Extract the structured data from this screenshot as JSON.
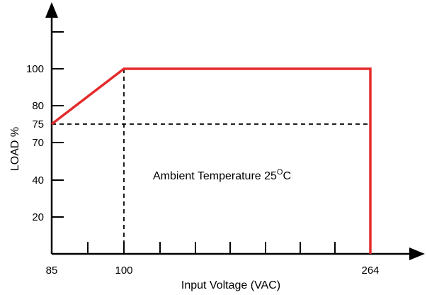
{
  "chart_data": {
    "type": "line",
    "xlabel": "Input Voltage (VAC)",
    "ylabel": "LOAD %",
    "x_tick_labels": [
      "85",
      "100",
      "264"
    ],
    "y_tick_labels": [
      "20",
      "40",
      "70",
      "75",
      "80",
      "100"
    ],
    "series": [
      {
        "color": "#e32b2b",
        "points": [
          {
            "x": 85,
            "y": 75
          },
          {
            "x": 100,
            "y": 100
          },
          {
            "x": 264,
            "y": 100
          },
          {
            "x": 264,
            "y": 0
          }
        ]
      }
    ],
    "reference_lines": [
      {
        "orientation": "horizontal",
        "y": 75,
        "from_x": 85,
        "to_x": 264,
        "style": "dashed"
      },
      {
        "orientation": "vertical",
        "x": 100,
        "from_y": 0,
        "to_y": 100,
        "style": "dashed"
      }
    ],
    "annotation": {
      "text": "Ambient Temperature 25",
      "superscript": "O",
      "suffix": "C"
    },
    "xlim": [
      85,
      264
    ],
    "ylim": [
      0,
      100
    ],
    "grid": false,
    "axis_color": "#000000"
  }
}
